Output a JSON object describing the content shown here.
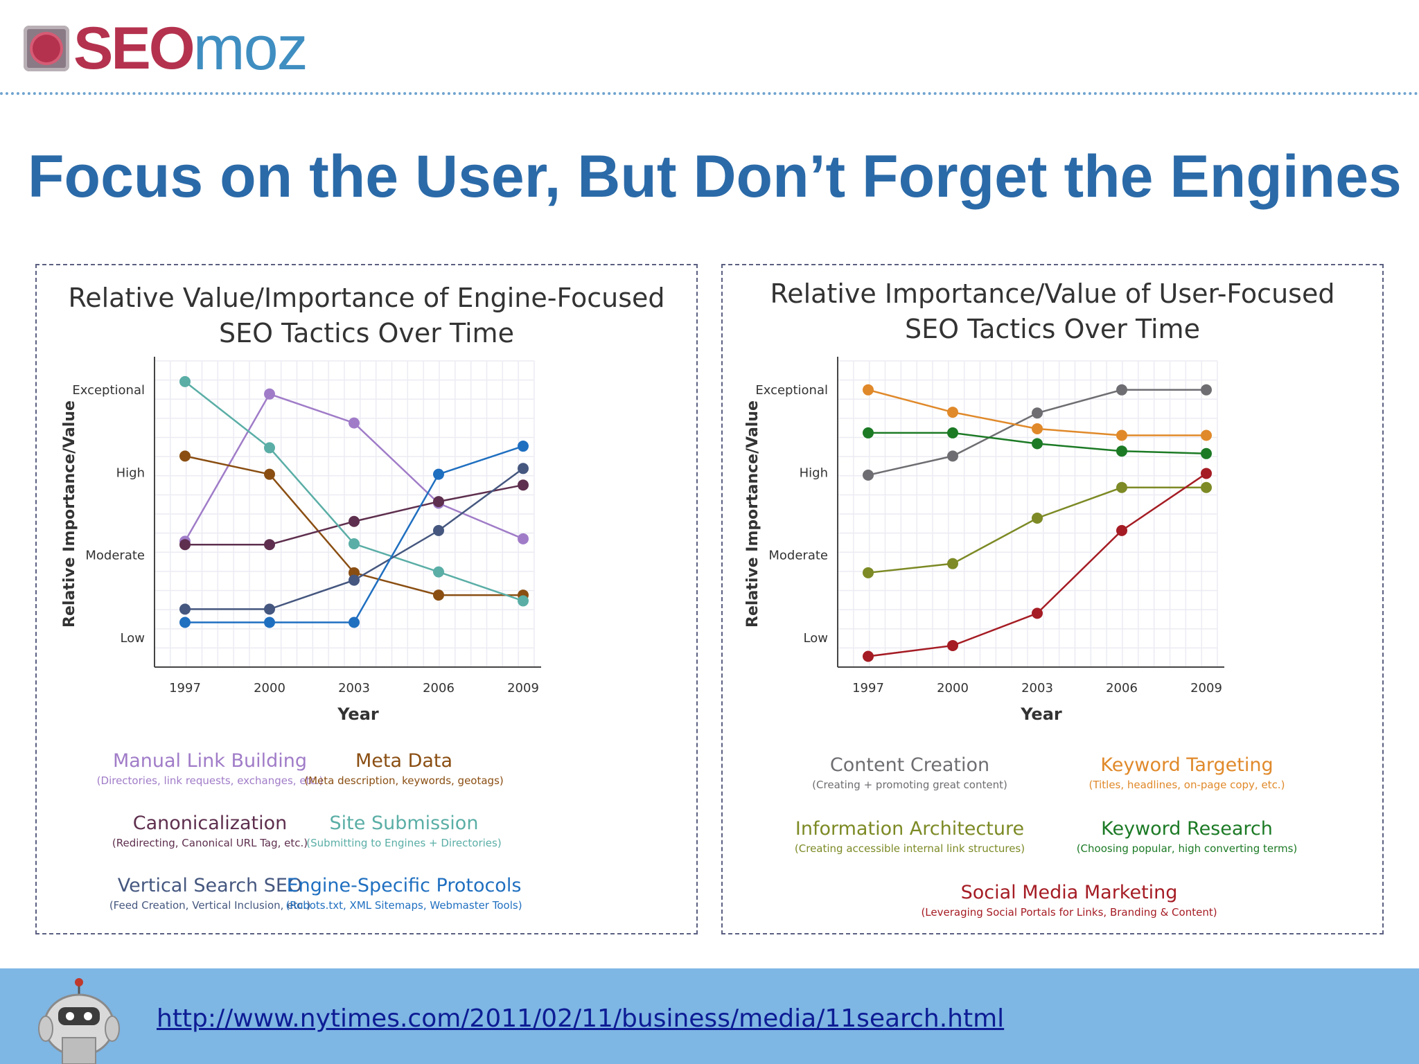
{
  "brand": {
    "seo": "SEO",
    "moz": "moz"
  },
  "slide": {
    "title": "Focus on the User, But Don’t Forget the Engines",
    "footer_link": "http://www.nytimes.com/2011/02/11/business/media/11search.html"
  },
  "chart_data": [
    {
      "type": "line",
      "title_line1": "Relative Value/Importance of Engine-Focused",
      "title_line2": "SEO Tactics Over Time",
      "xlabel": "Year",
      "ylabel": "Relative Importance/Value",
      "categories": [
        "1997",
        "2000",
        "2003",
        "2006",
        "2009"
      ],
      "y_ticks": [
        "Low",
        "Moderate",
        "High",
        "Exceptional"
      ],
      "ylim": [
        0.65,
        4.35
      ],
      "grid": true,
      "series": [
        {
          "name": "Manual Link Building",
          "desc": "(Directories, link requests, exchanges, etc.)",
          "color": "#a07cc8",
          "values": [
            2.17,
            3.95,
            3.6,
            2.63,
            2.2
          ]
        },
        {
          "name": "Meta Data",
          "desc": "(Meta description, keywords, geotags)",
          "color": "#8a4e12",
          "values": [
            3.2,
            2.98,
            1.79,
            1.52,
            1.52
          ]
        },
        {
          "name": "Canonicalization",
          "desc": "(Redirecting, Canonical URL Tag, etc.)",
          "color": "#5e2f4e",
          "values": [
            2.13,
            2.13,
            2.41,
            2.65,
            2.85
          ]
        },
        {
          "name": "Site Submission",
          "desc": "(Submitting to Engines + Directories)",
          "color": "#5aaea6",
          "values": [
            4.1,
            3.3,
            2.14,
            1.8,
            1.45
          ]
        },
        {
          "name": "Vertical Search SEO",
          "desc": "(Feed Creation, Vertical Inclusion, etc.)",
          "color": "#45577f",
          "values": [
            1.35,
            1.35,
            1.7,
            2.3,
            3.05
          ]
        },
        {
          "name": "Engine-Specific Protocols",
          "desc": "(Robots.txt, XML Sitemaps, Webmaster Tools)",
          "color": "#1f6fc0",
          "values": [
            1.19,
            1.19,
            1.19,
            2.98,
            3.32
          ]
        }
      ]
    },
    {
      "type": "line",
      "title_line1": "Relative Importance/Value of User-Focused",
      "title_line2": "SEO Tactics Over Time",
      "xlabel": "Year",
      "ylabel": "Relative Importance/Value",
      "categories": [
        "1997",
        "2000",
        "2003",
        "2006",
        "2009"
      ],
      "y_ticks": [
        "Low",
        "Moderate",
        "High",
        "Exceptional"
      ],
      "ylim": [
        0.65,
        4.35
      ],
      "grid": true,
      "series": [
        {
          "name": "Content Creation",
          "desc": "(Creating + promoting great content)",
          "color": "#6e6e72",
          "values": [
            2.97,
            3.2,
            3.72,
            4.0,
            4.0
          ]
        },
        {
          "name": "Keyword Targeting",
          "desc": "(Titles, headlines, on-page copy, etc.)",
          "color": "#e0892a",
          "values": [
            4.0,
            3.73,
            3.53,
            3.45,
            3.45
          ]
        },
        {
          "name": "Information Architecture",
          "desc": "(Creating accessible internal link structures)",
          "color": "#7d8a25",
          "values": [
            1.79,
            1.9,
            2.45,
            2.82,
            2.82
          ]
        },
        {
          "name": "Keyword Research",
          "desc": "(Choosing popular, high converting terms)",
          "color": "#1c7a25",
          "values": [
            3.48,
            3.48,
            3.35,
            3.26,
            3.23
          ]
        },
        {
          "name": "Social Media Marketing",
          "desc": "(Leveraging Social Portals for Links, Branding & Content)",
          "color": "#a51c24",
          "values": [
            0.78,
            0.91,
            1.3,
            2.3,
            2.99
          ]
        }
      ]
    }
  ]
}
